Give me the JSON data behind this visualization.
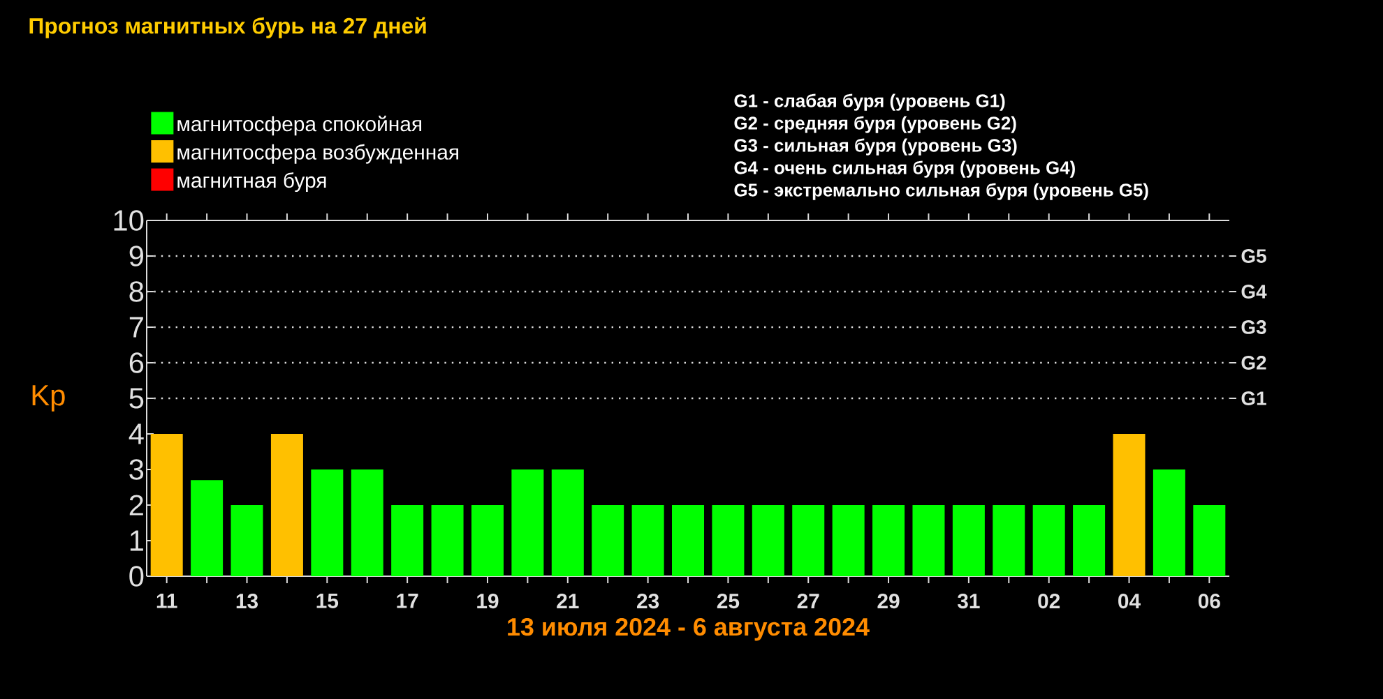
{
  "chart_data": {
    "type": "bar",
    "title": "Прогноз магнитных бурь на 27 дней",
    "xlabel": "13 июля 2024 - 6 августа 2024",
    "ylabel": "Kp",
    "categories": [
      "11",
      null,
      "13",
      null,
      "15",
      null,
      "17",
      null,
      "19",
      null,
      "21",
      null,
      "23",
      null,
      "25",
      null,
      "27",
      null,
      "29",
      null,
      "31",
      null,
      "02",
      null,
      "04",
      null,
      "06"
    ],
    "series": [
      {
        "name": "магнитосфера спокойная",
        "color": "#00ff00",
        "values": [
          null,
          2.7,
          2,
          null,
          3,
          3,
          2,
          2,
          2,
          3,
          3,
          2,
          2,
          2,
          2,
          2,
          2,
          2,
          2,
          2,
          2,
          2,
          2,
          2,
          null,
          3,
          2
        ]
      },
      {
        "name": "магнитосфера возбужденная",
        "color": "#ffc000",
        "values": [
          4,
          null,
          null,
          4,
          null,
          null,
          null,
          null,
          null,
          null,
          null,
          null,
          null,
          null,
          null,
          null,
          null,
          null,
          null,
          null,
          null,
          null,
          null,
          null,
          4,
          null,
          null
        ]
      },
      {
        "name": "магнитная буря",
        "color": "#ff0000",
        "values": [
          null,
          null,
          null,
          null,
          null,
          null,
          null,
          null,
          null,
          null,
          null,
          null,
          null,
          null,
          null,
          null,
          null,
          null,
          null,
          null,
          null,
          null,
          null,
          null,
          null,
          null,
          null
        ]
      }
    ],
    "ylim": [
      0,
      10
    ],
    "yticks": [
      0,
      1,
      2,
      3,
      4,
      5,
      6,
      7,
      8,
      9,
      10
    ],
    "ref_lines": [
      {
        "axis": "y",
        "value": 5,
        "label": "G1",
        "line_style": "dotted"
      },
      {
        "axis": "y",
        "value": 6,
        "label": "G2",
        "line_style": "dotted"
      },
      {
        "axis": "y",
        "value": 7,
        "label": "G3",
        "line_style": "dotted"
      },
      {
        "axis": "y",
        "value": 8,
        "label": "G4",
        "line_style": "dotted"
      },
      {
        "axis": "y",
        "value": 9,
        "label": "G5",
        "line_style": "dotted"
      }
    ],
    "annotations": [
      "G1 - слабая буря (уровень G1)",
      "G2 - средняя буря (уровень G2)",
      "G3 - сильная буря (уровень G3)",
      "G4 - очень сильная буря (уровень G4)",
      "G5 - экстремально сильная буря (уровень G5)"
    ],
    "legend": "top left"
  }
}
